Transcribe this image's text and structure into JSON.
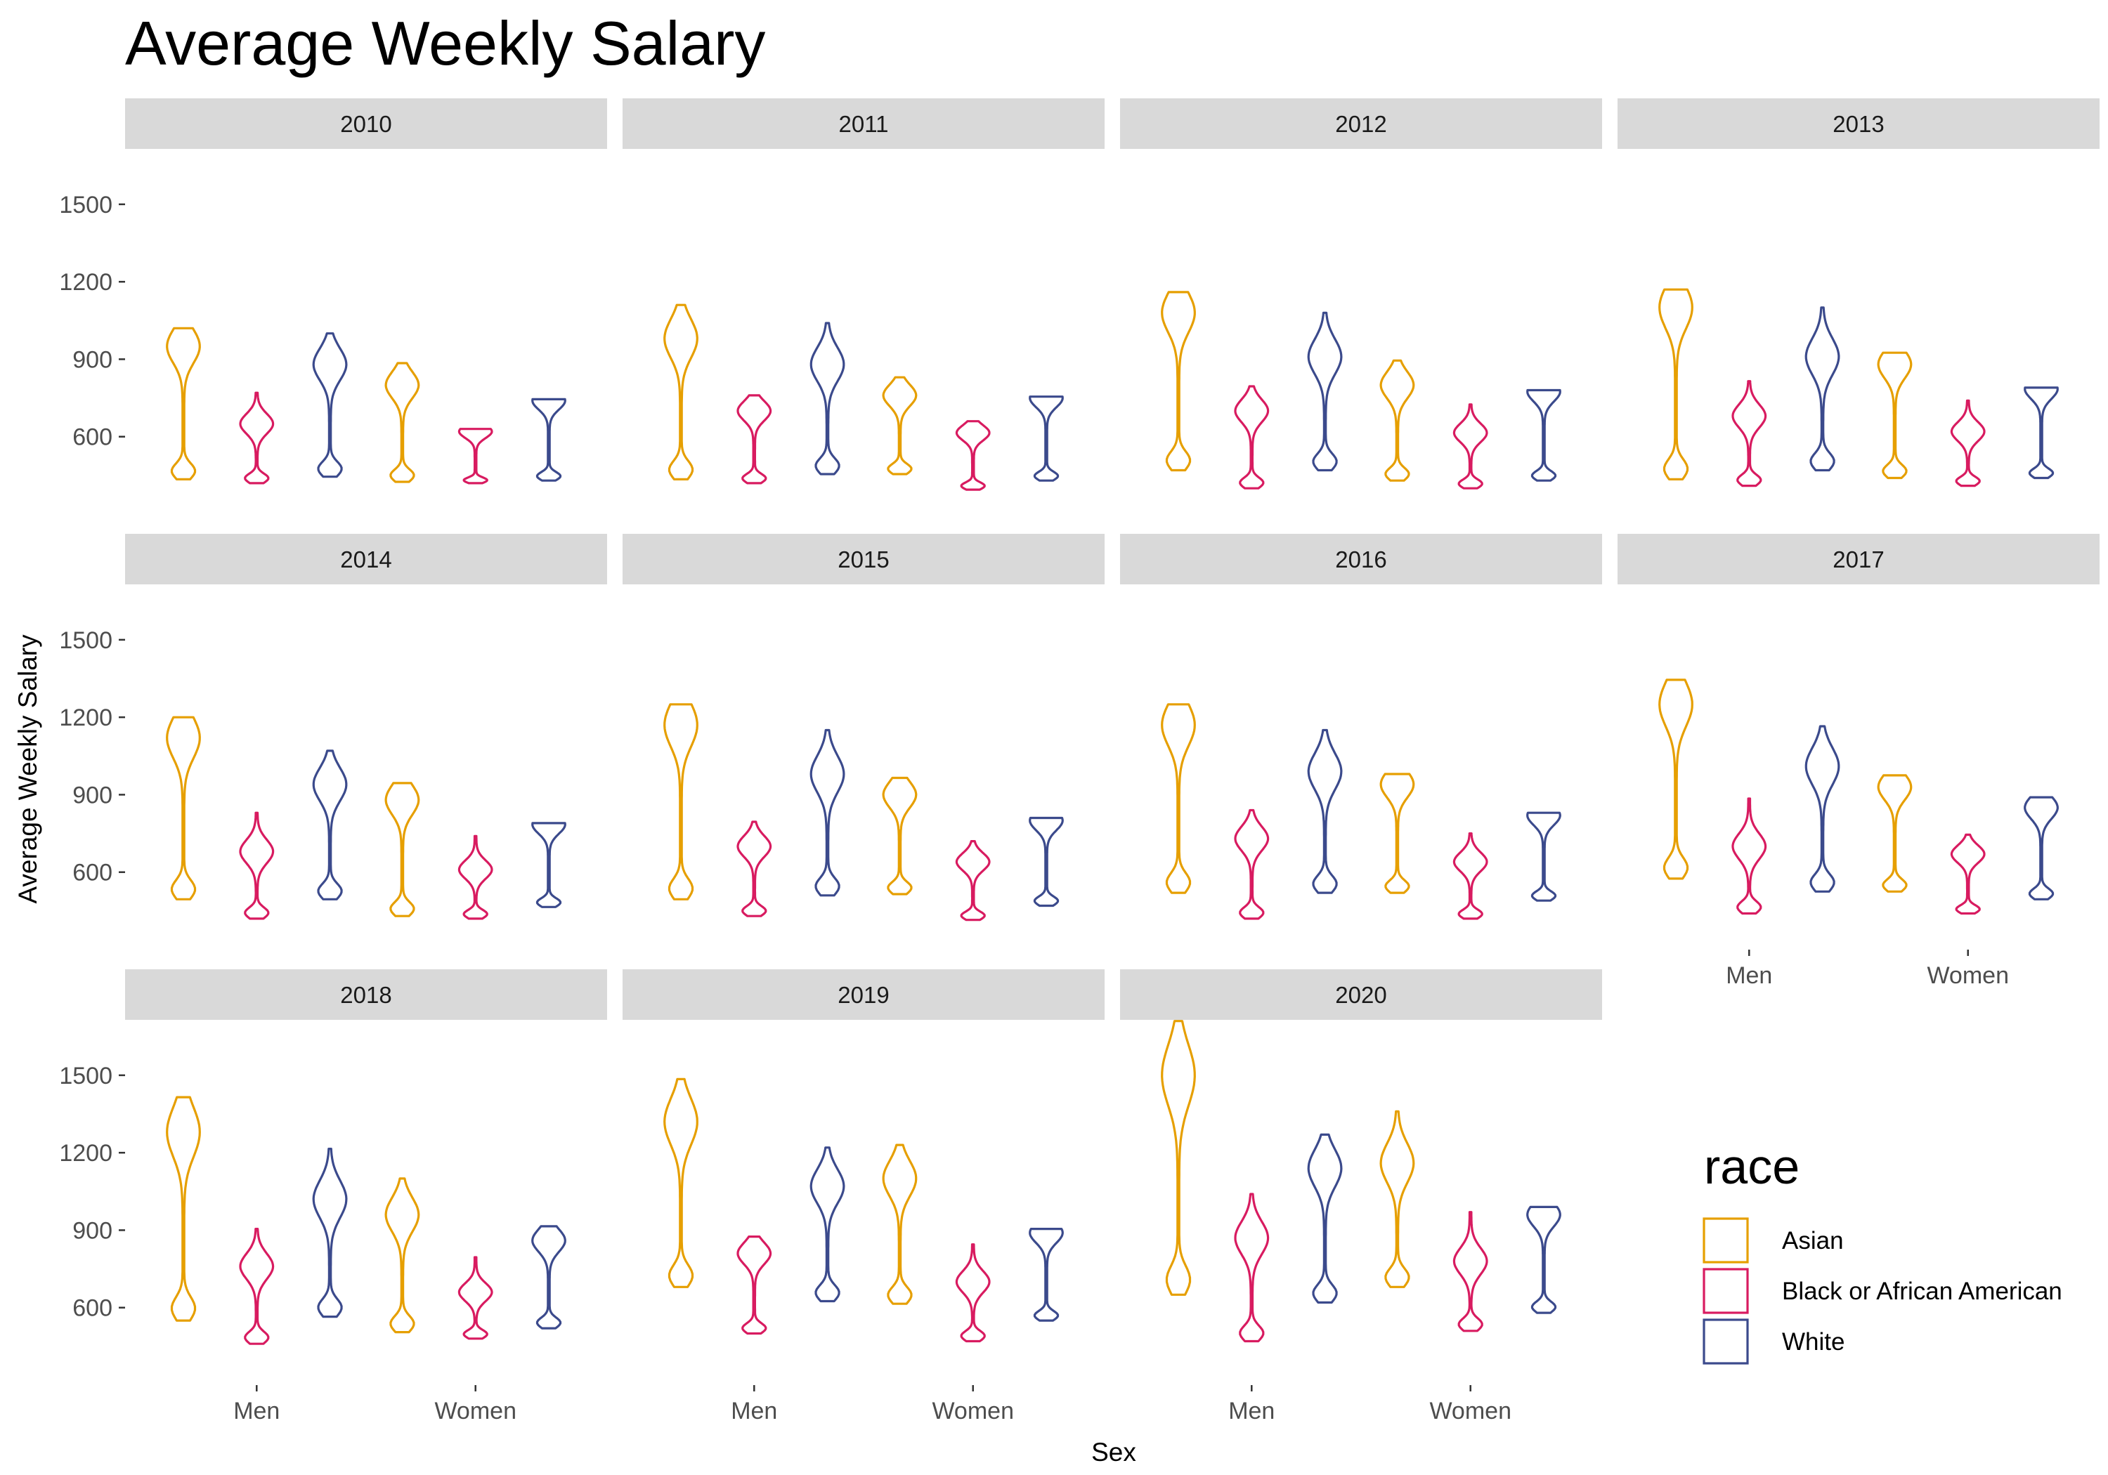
{
  "chart_data": {
    "type": "violin",
    "title": "Average Weekly Salary",
    "xlabel": "Sex",
    "ylabel": "Average Weekly Salary",
    "ylim": [
      300,
      1720
    ],
    "yticks": [
      600,
      900,
      1200,
      1500
    ],
    "categories": [
      "Men",
      "Women"
    ],
    "facet_by": "year",
    "legend": {
      "title": "race",
      "position": "right-bottom",
      "entries": [
        "Asian",
        "Black or African American",
        "White"
      ]
    },
    "colors": {
      "Asian": "#E69F00",
      "Black or African American": "#D81B60",
      "White": "#3B4A8C"
    },
    "grid": false,
    "panels": [
      {
        "year": "2010",
        "violins": [
          {
            "sex": "Men",
            "race": "Asian",
            "min": 435,
            "max": 1020,
            "mode": 950
          },
          {
            "sex": "Men",
            "race": "Black or African American",
            "min": 420,
            "max": 770,
            "mode": 650
          },
          {
            "sex": "Men",
            "race": "White",
            "min": 445,
            "max": 1000,
            "mode": 880
          },
          {
            "sex": "Women",
            "race": "Asian",
            "min": 425,
            "max": 885,
            "mode": 800
          },
          {
            "sex": "Women",
            "race": "Black or African American",
            "min": 420,
            "max": 630,
            "mode": 620
          },
          {
            "sex": "Women",
            "race": "White",
            "min": 430,
            "max": 745,
            "mode": 740
          }
        ]
      },
      {
        "year": "2011",
        "violins": [
          {
            "sex": "Men",
            "race": "Asian",
            "min": 435,
            "max": 1110,
            "mode": 980
          },
          {
            "sex": "Men",
            "race": "Black or African American",
            "min": 420,
            "max": 760,
            "mode": 700
          },
          {
            "sex": "Men",
            "race": "White",
            "min": 455,
            "max": 1040,
            "mode": 880
          },
          {
            "sex": "Women",
            "race": "Asian",
            "min": 455,
            "max": 830,
            "mode": 760
          },
          {
            "sex": "Women",
            "race": "Black or African American",
            "min": 395,
            "max": 660,
            "mode": 615
          },
          {
            "sex": "Women",
            "race": "White",
            "min": 430,
            "max": 755,
            "mode": 750
          }
        ]
      },
      {
        "year": "2012",
        "violins": [
          {
            "sex": "Men",
            "race": "Asian",
            "min": 470,
            "max": 1160,
            "mode": 1080
          },
          {
            "sex": "Men",
            "race": "Black or African American",
            "min": 400,
            "max": 795,
            "mode": 700
          },
          {
            "sex": "Men",
            "race": "White",
            "min": 470,
            "max": 1080,
            "mode": 910
          },
          {
            "sex": "Women",
            "race": "Asian",
            "min": 430,
            "max": 895,
            "mode": 800
          },
          {
            "sex": "Women",
            "race": "Black or African American",
            "min": 400,
            "max": 725,
            "mode": 615
          },
          {
            "sex": "Women",
            "race": "White",
            "min": 430,
            "max": 780,
            "mode": 775
          }
        ]
      },
      {
        "year": "2013",
        "violins": [
          {
            "sex": "Men",
            "race": "Asian",
            "min": 435,
            "max": 1170,
            "mode": 1100
          },
          {
            "sex": "Men",
            "race": "Black or African American",
            "min": 410,
            "max": 815,
            "mode": 680
          },
          {
            "sex": "Men",
            "race": "White",
            "min": 470,
            "max": 1100,
            "mode": 910
          },
          {
            "sex": "Women",
            "race": "Asian",
            "min": 440,
            "max": 925,
            "mode": 880
          },
          {
            "sex": "Women",
            "race": "Black or African American",
            "min": 410,
            "max": 740,
            "mode": 620
          },
          {
            "sex": "Women",
            "race": "White",
            "min": 440,
            "max": 790,
            "mode": 785
          }
        ]
      },
      {
        "year": "2014",
        "violins": [
          {
            "sex": "Men",
            "race": "Asian",
            "min": 495,
            "max": 1200,
            "mode": 1120
          },
          {
            "sex": "Men",
            "race": "Black or African American",
            "min": 420,
            "max": 830,
            "mode": 680
          },
          {
            "sex": "Men",
            "race": "White",
            "min": 495,
            "max": 1070,
            "mode": 940
          },
          {
            "sex": "Women",
            "race": "Asian",
            "min": 430,
            "max": 945,
            "mode": 880
          },
          {
            "sex": "Women",
            "race": "Black or African American",
            "min": 420,
            "max": 740,
            "mode": 610
          },
          {
            "sex": "Women",
            "race": "White",
            "min": 465,
            "max": 790,
            "mode": 785
          }
        ]
      },
      {
        "year": "2015",
        "violins": [
          {
            "sex": "Men",
            "race": "Asian",
            "min": 495,
            "max": 1250,
            "mode": 1170
          },
          {
            "sex": "Men",
            "race": "Black or African American",
            "min": 430,
            "max": 795,
            "mode": 700
          },
          {
            "sex": "Men",
            "race": "White",
            "min": 510,
            "max": 1150,
            "mode": 980
          },
          {
            "sex": "Women",
            "race": "Asian",
            "min": 515,
            "max": 965,
            "mode": 900
          },
          {
            "sex": "Women",
            "race": "Black or African American",
            "min": 415,
            "max": 720,
            "mode": 640
          },
          {
            "sex": "Women",
            "race": "White",
            "min": 470,
            "max": 810,
            "mode": 800
          }
        ]
      },
      {
        "year": "2016",
        "violins": [
          {
            "sex": "Men",
            "race": "Asian",
            "min": 520,
            "max": 1250,
            "mode": 1170
          },
          {
            "sex": "Men",
            "race": "Black or African American",
            "min": 420,
            "max": 840,
            "mode": 730
          },
          {
            "sex": "Men",
            "race": "White",
            "min": 520,
            "max": 1150,
            "mode": 990
          },
          {
            "sex": "Women",
            "race": "Asian",
            "min": 520,
            "max": 980,
            "mode": 940
          },
          {
            "sex": "Women",
            "race": "Black or African American",
            "min": 420,
            "max": 750,
            "mode": 640
          },
          {
            "sex": "Women",
            "race": "White",
            "min": 490,
            "max": 830,
            "mode": 820
          }
        ]
      },
      {
        "year": "2017",
        "violins": [
          {
            "sex": "Men",
            "race": "Asian",
            "min": 575,
            "max": 1345,
            "mode": 1250
          },
          {
            "sex": "Men",
            "race": "Black or African American",
            "min": 440,
            "max": 885,
            "mode": 700
          },
          {
            "sex": "Men",
            "race": "White",
            "min": 525,
            "max": 1165,
            "mode": 1010
          },
          {
            "sex": "Women",
            "race": "Asian",
            "min": 525,
            "max": 975,
            "mode": 930
          },
          {
            "sex": "Women",
            "race": "Black or African American",
            "min": 440,
            "max": 745,
            "mode": 670
          },
          {
            "sex": "Women",
            "race": "White",
            "min": 495,
            "max": 890,
            "mode": 850
          }
        ]
      },
      {
        "year": "2018",
        "violins": [
          {
            "sex": "Men",
            "race": "Asian",
            "min": 550,
            "max": 1415,
            "mode": 1280
          },
          {
            "sex": "Men",
            "race": "Black or African American",
            "min": 460,
            "max": 905,
            "mode": 760
          },
          {
            "sex": "Men",
            "race": "White",
            "min": 565,
            "max": 1215,
            "mode": 1020
          },
          {
            "sex": "Women",
            "race": "Asian",
            "min": 505,
            "max": 1100,
            "mode": 960
          },
          {
            "sex": "Women",
            "race": "Black or African American",
            "min": 480,
            "max": 795,
            "mode": 660
          },
          {
            "sex": "Women",
            "race": "White",
            "min": 520,
            "max": 915,
            "mode": 860
          }
        ]
      },
      {
        "year": "2019",
        "violins": [
          {
            "sex": "Men",
            "race": "Asian",
            "min": 680,
            "max": 1485,
            "mode": 1320
          },
          {
            "sex": "Men",
            "race": "Black or African American",
            "min": 500,
            "max": 875,
            "mode": 810
          },
          {
            "sex": "Men",
            "race": "White",
            "min": 625,
            "max": 1220,
            "mode": 1070
          },
          {
            "sex": "Women",
            "race": "Asian",
            "min": 615,
            "max": 1230,
            "mode": 1100
          },
          {
            "sex": "Women",
            "race": "Black or African American",
            "min": 470,
            "max": 845,
            "mode": 700
          },
          {
            "sex": "Women",
            "race": "White",
            "min": 550,
            "max": 905,
            "mode": 890
          }
        ]
      },
      {
        "year": "2020",
        "violins": [
          {
            "sex": "Men",
            "race": "Asian",
            "min": 650,
            "max": 1710,
            "mode": 1500
          },
          {
            "sex": "Men",
            "race": "Black or African American",
            "min": 470,
            "max": 1040,
            "mode": 870
          },
          {
            "sex": "Men",
            "race": "White",
            "min": 620,
            "max": 1270,
            "mode": 1140
          },
          {
            "sex": "Women",
            "race": "Asian",
            "min": 680,
            "max": 1360,
            "mode": 1160
          },
          {
            "sex": "Women",
            "race": "Black or African American",
            "min": 510,
            "max": 970,
            "mode": 780
          },
          {
            "sex": "Women",
            "race": "White",
            "min": 580,
            "max": 990,
            "mode": 960
          }
        ]
      }
    ]
  }
}
